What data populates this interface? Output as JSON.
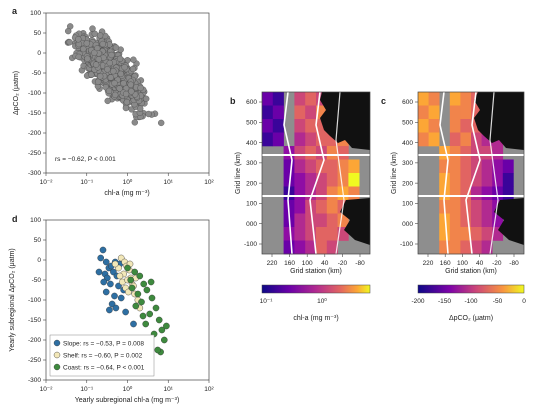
{
  "chart_data": [
    {
      "panel": "a",
      "type": "scatter",
      "xlabel": "chl-a (mg m⁻³)",
      "ylabel": "ΔpCO₂ (μatm)",
      "xscale": "log",
      "xlim": [
        0.01,
        100
      ],
      "ylim": [
        -300,
        100
      ],
      "xticks": [
        "10⁻²",
        "10⁻¹",
        "10⁰",
        "10¹",
        "10²"
      ],
      "yticks": [
        "100",
        "50",
        "0",
        "-50",
        "-100",
        "-150",
        "-200",
        "-250",
        "-300"
      ],
      "annotation": "rs = −0.62, P < 0.001",
      "marker_color": "#8a8a8a",
      "grid": false
    },
    {
      "panel": "b",
      "type": "heatmap",
      "xlabel": "Grid station (km)",
      "ylabel": "Grid line (km)",
      "xticks": [
        "220",
        "160",
        "100",
        "40",
        "-20",
        "-80"
      ],
      "yticks": [
        "600",
        "500",
        "400",
        "300",
        "200",
        "100",
        "000",
        "-100"
      ],
      "colorbar_label": "chl-a (mg m⁻³)",
      "colorbar_ticks": [
        "10⁻¹",
        "10⁰"
      ],
      "colorbar_scale": "log"
    },
    {
      "panel": "c",
      "type": "heatmap",
      "xlabel": "Grid station (km)",
      "ylabel": "Grid line (km)",
      "xticks": [
        "220",
        "160",
        "100",
        "40",
        "-20",
        "-80"
      ],
      "yticks": [
        "600",
        "500",
        "400",
        "300",
        "200",
        "100",
        "000",
        "-100"
      ],
      "colorbar_label": "ΔpCO₂ (μatm)",
      "colorbar_ticks": [
        "-200",
        "-150",
        "-100",
        "-50",
        "0"
      ]
    },
    {
      "panel": "d",
      "type": "scatter",
      "xlabel": "Yearly subregional chl-a (mg m⁻³)",
      "ylabel": "Yearly subregional ΔpCO₂ (μatm)",
      "xscale": "log",
      "xlim": [
        0.01,
        100
      ],
      "ylim": [
        -300,
        100
      ],
      "xticks": [
        "10⁻²",
        "10⁻¹",
        "10⁰",
        "10¹",
        "10²"
      ],
      "yticks": [
        "100",
        "50",
        "0",
        "-50",
        "-100",
        "-150",
        "-200",
        "-250",
        "-300"
      ],
      "legend_position": "bottom-left",
      "series": [
        {
          "name": "Slope: rs = −0.53, P = 0.008",
          "color": "#2e6fa3",
          "points": [
            [
              0.25,
              25
            ],
            [
              0.3,
              -5
            ],
            [
              0.22,
              5
            ],
            [
              0.35,
              -20
            ],
            [
              0.28,
              -35
            ],
            [
              0.4,
              -15
            ],
            [
              0.32,
              -45
            ],
            [
              0.45,
              -30
            ],
            [
              0.5,
              -5
            ],
            [
              0.38,
              -60
            ],
            [
              0.55,
              -40
            ],
            [
              0.3,
              -80
            ],
            [
              0.6,
              -65
            ],
            [
              0.48,
              -90
            ],
            [
              0.42,
              -110
            ],
            [
              0.7,
              -95
            ],
            [
              0.52,
              -120
            ],
            [
              0.2,
              -30
            ],
            [
              0.26,
              -55
            ],
            [
              0.65,
              -10
            ],
            [
              0.8,
              -75
            ],
            [
              0.36,
              -125
            ],
            [
              1.4,
              -160
            ],
            [
              0.9,
              -130
            ]
          ]
        },
        {
          "name": "Shelf: rs = −0.60, P = 0.002",
          "color": "#f2e7b8",
          "points": [
            [
              0.7,
              5
            ],
            [
              0.85,
              -5
            ],
            [
              0.95,
              -15
            ],
            [
              1.1,
              -25
            ],
            [
              0.8,
              -35
            ],
            [
              1.2,
              -45
            ],
            [
              0.75,
              -55
            ],
            [
              1.3,
              -60
            ],
            [
              0.9,
              -70
            ],
            [
              1.05,
              -80
            ],
            [
              1.5,
              -85
            ],
            [
              0.6,
              -20
            ],
            [
              1.8,
              -100
            ],
            [
              1.15,
              -10
            ],
            [
              0.65,
              -40
            ],
            [
              2.0,
              -120
            ],
            [
              1.0,
              -50
            ],
            [
              1.4,
              -65
            ],
            [
              0.5,
              -10
            ],
            [
              1.6,
              -45
            ]
          ]
        },
        {
          "name": "Coast: rs = −0.64, P < 0.001",
          "color": "#3e8a3e",
          "points": [
            [
              1.0,
              -20
            ],
            [
              1.5,
              -30
            ],
            [
              2.0,
              -40
            ],
            [
              1.2,
              -50
            ],
            [
              2.5,
              -60
            ],
            [
              3.0,
              -75
            ],
            [
              1.8,
              -85
            ],
            [
              4.0,
              -95
            ],
            [
              2.2,
              -105
            ],
            [
              5.0,
              -120
            ],
            [
              3.5,
              -135
            ],
            [
              6.0,
              -150
            ],
            [
              2.8,
              -160
            ],
            [
              7.0,
              -175
            ],
            [
              4.5,
              -185
            ],
            [
              8.0,
              -200
            ],
            [
              3.2,
              -210
            ],
            [
              6.5,
              -230
            ],
            [
              5.5,
              -225
            ],
            [
              1.6,
              -115
            ],
            [
              2.4,
              -140
            ],
            [
              9.0,
              -165
            ],
            [
              1.3,
              -70
            ],
            [
              3.8,
              -55
            ]
          ]
        }
      ]
    }
  ]
}
